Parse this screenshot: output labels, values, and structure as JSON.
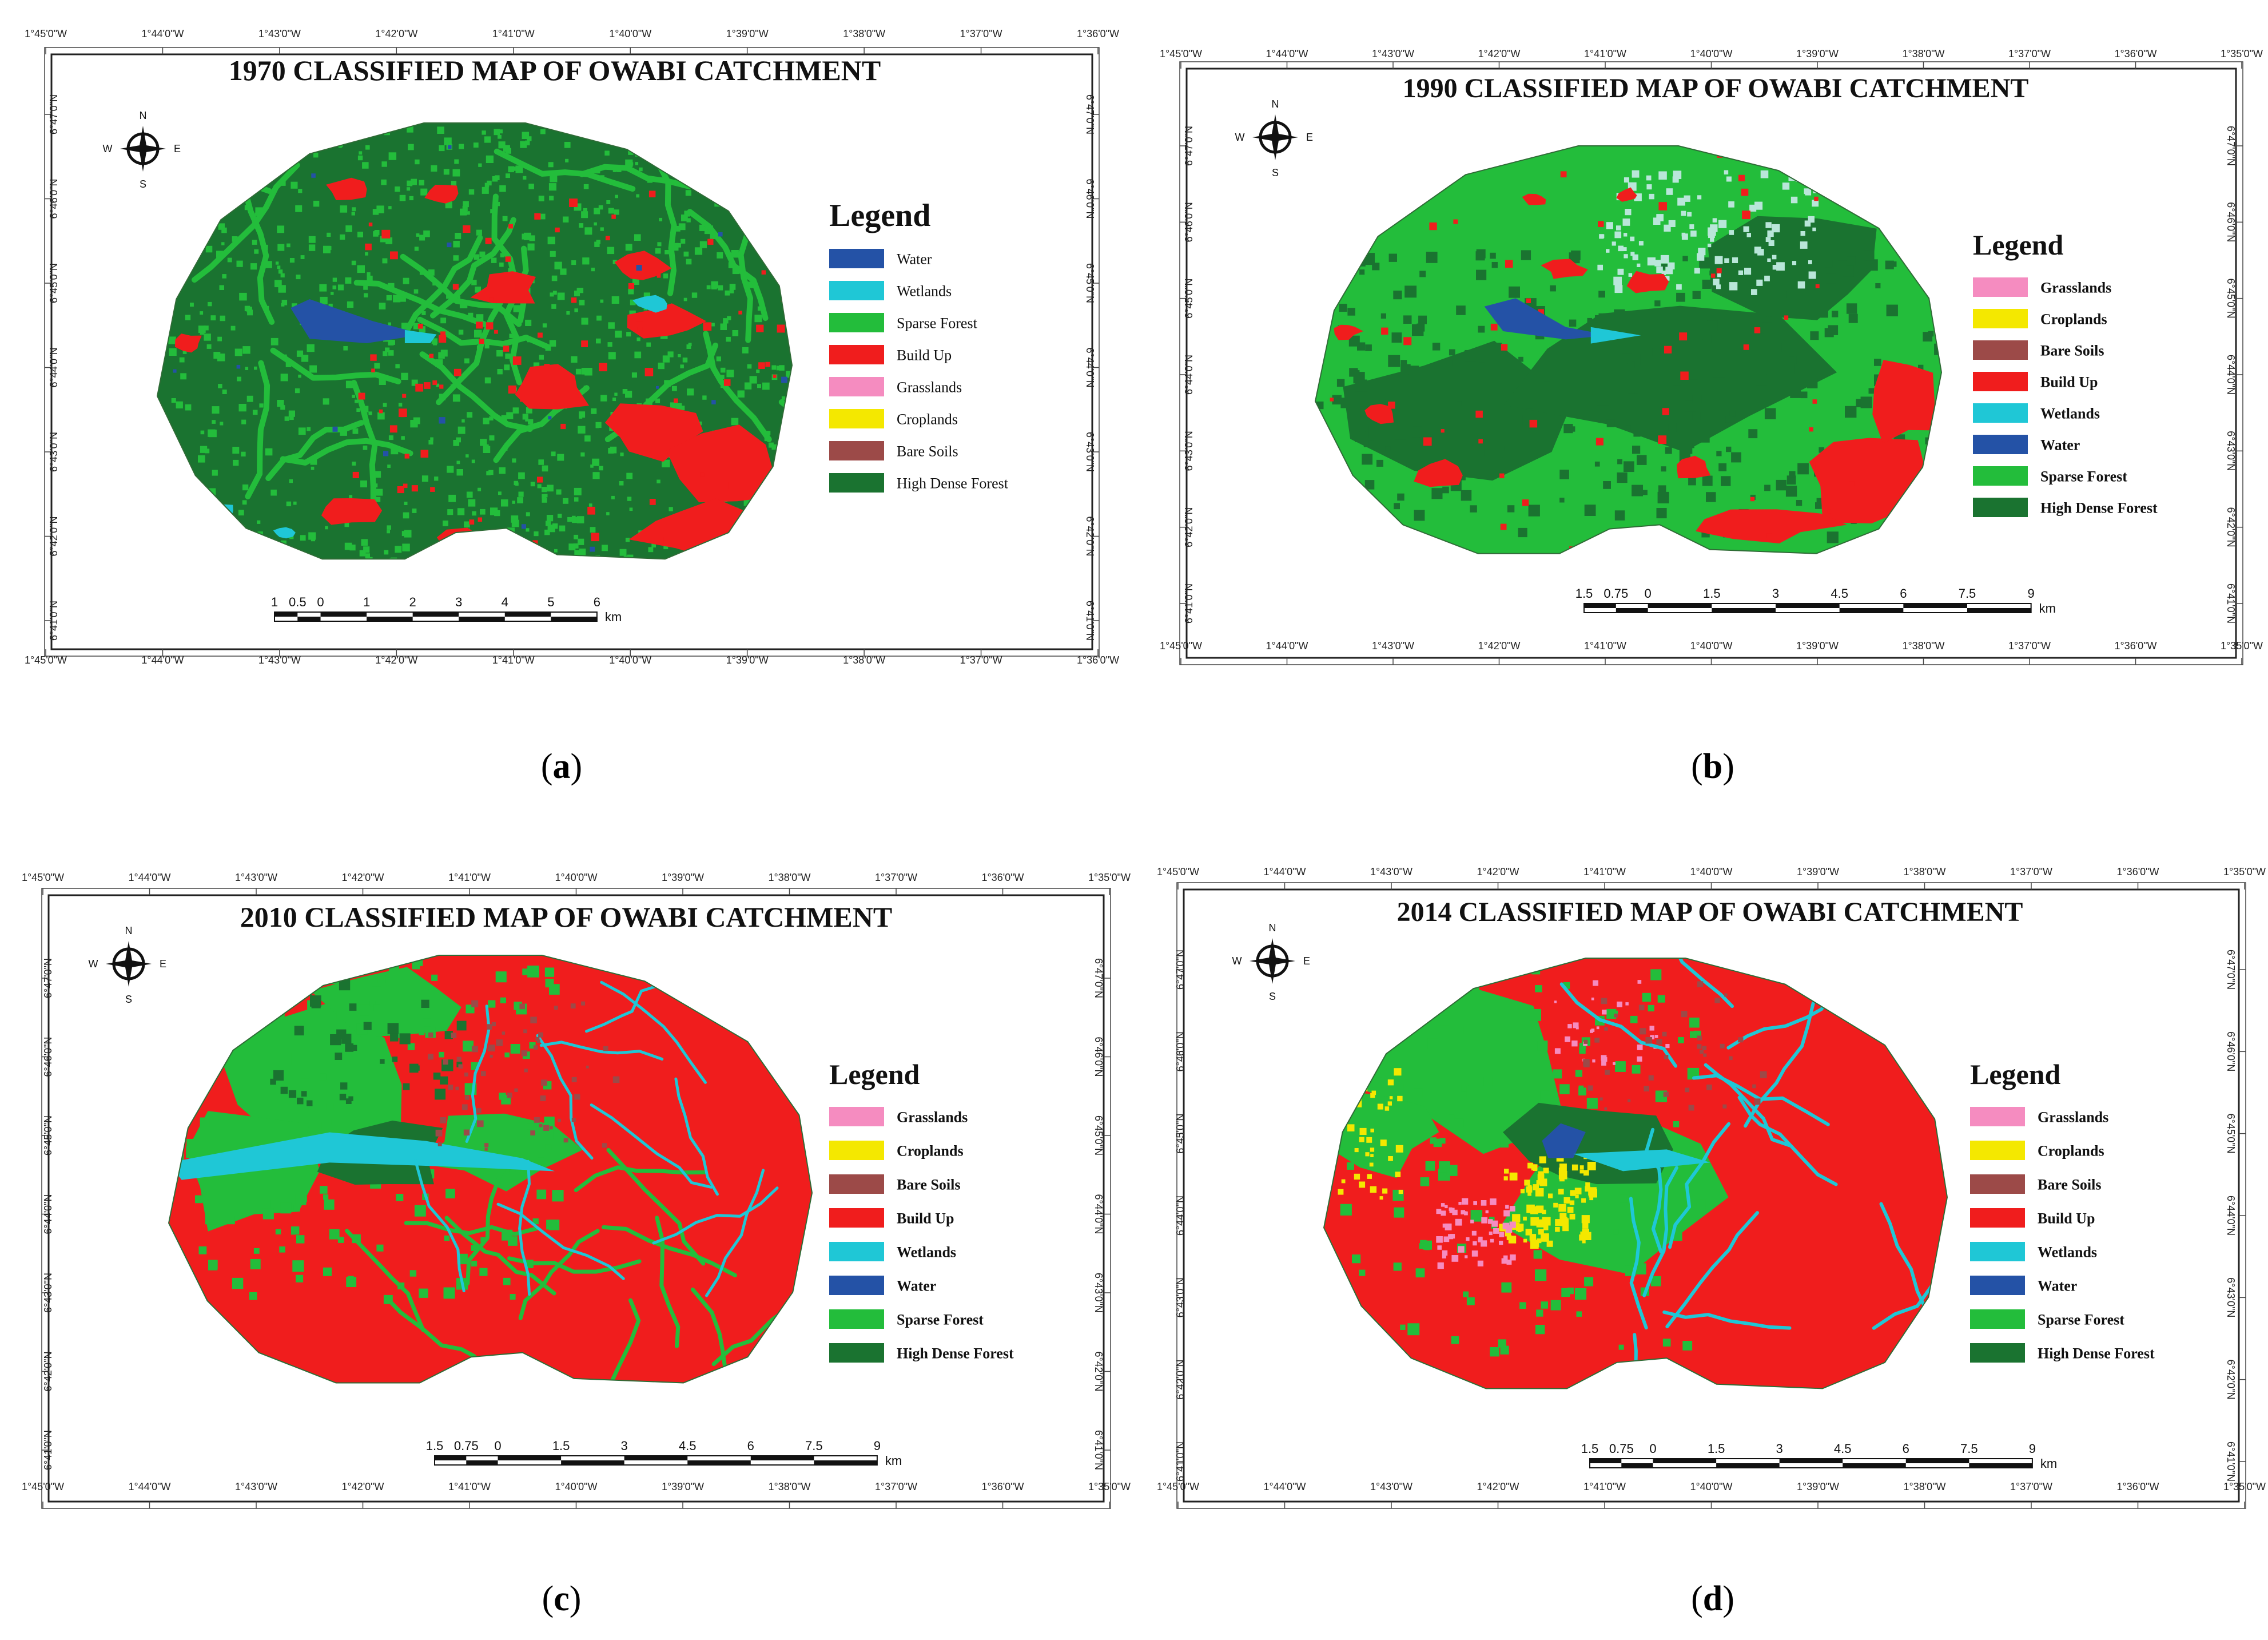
{
  "figure": {
    "captions": [
      "a",
      "b",
      "c",
      "d"
    ]
  },
  "map_colors": {
    "water": "#2452a6",
    "wetlands": "#1fc7d6",
    "sparse_forest": "#23bd3b",
    "build_up": "#f01d1d",
    "grasslands": "#f58cc0",
    "croplands": "#f4e800",
    "bare_soils": "#9c4a48",
    "high_dense_forest": "#1a7330"
  },
  "compass": {
    "n": "N",
    "s": "S",
    "e": "E",
    "w": "W"
  },
  "panels": [
    {
      "id": "a",
      "title": "1970 CLASSIFIED MAP OF OWABI CATCHMENT",
      "legend_title": "Legend",
      "legend_bold": false,
      "legend": [
        {
          "label": "Water",
          "color": "#2452a6"
        },
        {
          "label": "Wetlands",
          "color": "#1fc7d6"
        },
        {
          "label": "Sparse Forest",
          "color": "#23bd3b"
        },
        {
          "label": "Build Up",
          "color": "#f01d1d"
        },
        {
          "label": "Grasslands",
          "color": "#f58cc0"
        },
        {
          "label": "Croplands",
          "color": "#f4e800"
        },
        {
          "label": "Bare Soils",
          "color": "#9c4a48"
        },
        {
          "label": "High Dense Forest",
          "color": "#1a7330"
        }
      ],
      "top_lon": [
        "1°45'0\"W",
        "1°44'0\"W",
        "1°43'0\"W",
        "1°42'0\"W",
        "1°41'0\"W",
        "1°40'0\"W",
        "1°39'0\"W",
        "1°38'0\"W",
        "1°37'0\"W",
        "1°36'0\"W"
      ],
      "bottom_lon": [
        "1°45'0\"W",
        "1°44'0\"W",
        "1°43'0\"W",
        "1°42'0\"W",
        "1°41'0\"W",
        "1°40'0\"W",
        "1°39'0\"W",
        "1°38'0\"W",
        "1°37'0\"W",
        "1°36'0\"W"
      ],
      "lat": [
        "6°47'0\"N",
        "6°46'0\"N",
        "6°45'0\"N",
        "6°44'0\"N",
        "6°43'0\"N",
        "6°42'0\"N",
        "6°41'0\"N"
      ],
      "scale_labels": [
        "1",
        "0.5",
        "0",
        "1",
        "2",
        "3",
        "4",
        "5",
        "6"
      ],
      "scale_unit": "km"
    },
    {
      "id": "b",
      "title": "1990 CLASSIFIED MAP OF OWABI CATCHMENT",
      "legend_title": "Legend",
      "legend_bold": true,
      "legend": [
        {
          "label": "Grasslands",
          "color": "#f58cc0"
        },
        {
          "label": "Croplands",
          "color": "#f4e800"
        },
        {
          "label": "Bare Soils",
          "color": "#9c4a48"
        },
        {
          "label": "Build Up",
          "color": "#f01d1d"
        },
        {
          "label": "Wetlands",
          "color": "#1fc7d6"
        },
        {
          "label": "Water",
          "color": "#2452a6"
        },
        {
          "label": "Sparse Forest",
          "color": "#23bd3b"
        },
        {
          "label": "High Dense Forest",
          "color": "#1a7330"
        }
      ],
      "top_lon": [
        "1°45'0\"W",
        "1°44'0\"W",
        "1°43'0\"W",
        "1°42'0\"W",
        "1°41'0\"W",
        "1°40'0\"W",
        "1°39'0\"W",
        "1°38'0\"W",
        "1°37'0\"W",
        "1°36'0\"W",
        "1°35'0\"W"
      ],
      "bottom_lon": [
        "1°45'0\"W",
        "1°44'0\"W",
        "1°43'0\"W",
        "1°42'0\"W",
        "1°41'0\"W",
        "1°40'0\"W",
        "1°39'0\"W",
        "1°38'0\"W",
        "1°37'0\"W",
        "1°36'0\"W",
        "1°35'0\"W"
      ],
      "lat": [
        "6°47'0\"N",
        "6°46'0\"N",
        "6°45'0\"N",
        "6°44'0\"N",
        "6°43'0\"N",
        "6°42'0\"N",
        "6°41'0\"N"
      ],
      "scale_labels": [
        "1.5",
        "0.75",
        "0",
        "1.5",
        "3",
        "4.5",
        "6",
        "7.5",
        "9"
      ],
      "scale_unit": "km"
    },
    {
      "id": "c",
      "title": "2010 CLASSIFIED MAP OF OWABI CATCHMENT",
      "legend_title": "Legend",
      "legend_bold": true,
      "legend": [
        {
          "label": "Grasslands",
          "color": "#f58cc0"
        },
        {
          "label": "Croplands",
          "color": "#f4e800"
        },
        {
          "label": "Bare Soils",
          "color": "#9c4a48"
        },
        {
          "label": "Build Up",
          "color": "#f01d1d"
        },
        {
          "label": "Wetlands",
          "color": "#1fc7d6"
        },
        {
          "label": "Water",
          "color": "#2452a6"
        },
        {
          "label": "Sparse Forest",
          "color": "#23bd3b"
        },
        {
          "label": "High Dense Forest",
          "color": "#1a7330"
        }
      ],
      "top_lon": [
        "1°45'0\"W",
        "1°44'0\"W",
        "1°43'0\"W",
        "1°42'0\"W",
        "1°41'0\"W",
        "1°40'0\"W",
        "1°39'0\"W",
        "1°38'0\"W",
        "1°37'0\"W",
        "1°36'0\"W",
        "1°35'0\"W"
      ],
      "bottom_lon": [
        "1°45'0\"W",
        "1°44'0\"W",
        "1°43'0\"W",
        "1°42'0\"W",
        "1°41'0\"W",
        "1°40'0\"W",
        "1°39'0\"W",
        "1°38'0\"W",
        "1°37'0\"W",
        "1°36'0\"W",
        "1°35'0\"W"
      ],
      "lat": [
        "6°47'0\"N",
        "6°46'0\"N",
        "6°45'0\"N",
        "6°44'0\"N",
        "6°43'0\"N",
        "6°42'0\"N",
        "6°41'0\"N"
      ],
      "scale_labels": [
        "1.5",
        "0.75",
        "0",
        "1.5",
        "3",
        "4.5",
        "6",
        "7.5",
        "9"
      ],
      "scale_unit": "km"
    },
    {
      "id": "d",
      "title": "2014 CLASSIFIED MAP OF OWABI CATCHMENT",
      "legend_title": "Legend",
      "legend_bold": true,
      "legend": [
        {
          "label": "Grasslands",
          "color": "#f58cc0"
        },
        {
          "label": "Croplands",
          "color": "#f4e800"
        },
        {
          "label": "Bare Soils",
          "color": "#9c4a48"
        },
        {
          "label": "Build Up",
          "color": "#f01d1d"
        },
        {
          "label": "Wetlands",
          "color": "#1fc7d6"
        },
        {
          "label": "Water",
          "color": "#2452a6"
        },
        {
          "label": "Sparse Forest",
          "color": "#23bd3b"
        },
        {
          "label": "High Dense Forest",
          "color": "#1a7330"
        }
      ],
      "top_lon": [
        "1°45'0\"W",
        "1°44'0\"W",
        "1°43'0\"W",
        "1°42'0\"W",
        "1°41'0\"W",
        "1°40'0\"W",
        "1°39'0\"W",
        "1°38'0\"W",
        "1°37'0\"W",
        "1°36'0\"W",
        "1°35'0\"W"
      ],
      "bottom_lon": [
        "1°45'0\"W",
        "1°44'0\"W",
        "1°43'0\"W",
        "1°42'0\"W",
        "1°41'0\"W",
        "1°40'0\"W",
        "1°39'0\"W",
        "1°38'0\"W",
        "1°37'0\"W",
        "1°36'0\"W",
        "1°35'0\"W"
      ],
      "lat": [
        "6°47'0\"N",
        "6°46'0\"N",
        "6°45'0\"N",
        "6°44'0\"N",
        "6°43'0\"N",
        "6°42'0\"N",
        "6°41'0\"N"
      ],
      "scale_labels": [
        "1.5",
        "0.75",
        "0",
        "1.5",
        "3",
        "4.5",
        "6",
        "7.5",
        "9"
      ],
      "scale_unit": "km"
    }
  ]
}
